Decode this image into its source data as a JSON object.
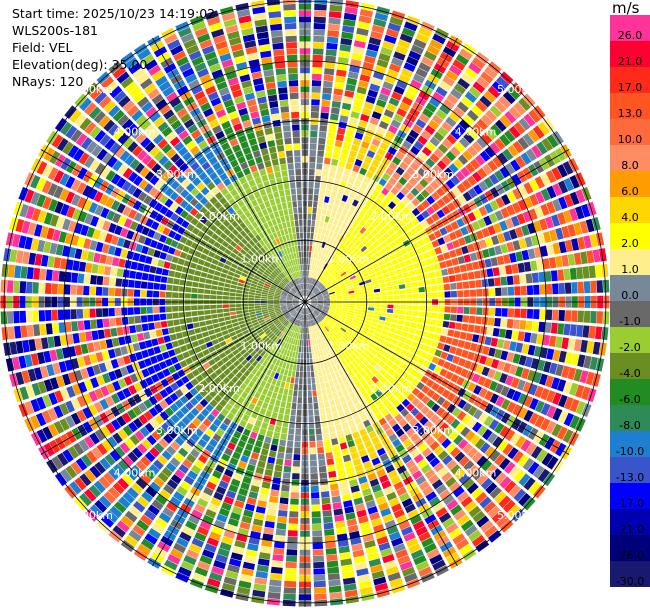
{
  "header": {
    "start_time": "Start time: 2025/10/23 14:19:02",
    "instrument": "WLS200s-181",
    "field": "Field: VEL",
    "elevation": "Elevation(deg): 35.00",
    "nrays": "NRays: 120"
  },
  "colorbar": {
    "unit": "m/s",
    "bins": [
      {
        "label": "26.0",
        "color": "#ff3399"
      },
      {
        "label": "21.0",
        "color": "#ff0033"
      },
      {
        "label": "17.0",
        "color": "#ff2a1a"
      },
      {
        "label": "13.0",
        "color": "#ff5522"
      },
      {
        "label": "10.0",
        "color": "#ff6a3c"
      },
      {
        "label": "8.0",
        "color": "#ff8c62"
      },
      {
        "label": "6.0",
        "color": "#ff9c00"
      },
      {
        "label": "4.0",
        "color": "#ffd700"
      },
      {
        "label": "2.0",
        "color": "#ffff00"
      },
      {
        "label": "1.0",
        "color": "#ffef8c"
      },
      {
        "label": "0.0",
        "color": "#778899"
      },
      {
        "label": "-1.0",
        "color": "#696969"
      },
      {
        "label": "-2.0",
        "color": "#9acd32"
      },
      {
        "label": "-4.0",
        "color": "#6b8e23"
      },
      {
        "label": "-6.0",
        "color": "#228b22"
      },
      {
        "label": "-8.0",
        "color": "#2e8b57"
      },
      {
        "label": "-10.0",
        "color": "#1e7fd0"
      },
      {
        "label": "-13.0",
        "color": "#3a54cc"
      },
      {
        "label": "-17.0",
        "color": "#0000ff"
      },
      {
        "label": "-21.0",
        "color": "#0000b0"
      },
      {
        "label": "-26.0",
        "color": "#00007a"
      },
      {
        "label": "-30.0",
        "color": "#191970"
      }
    ]
  },
  "chart_data": {
    "type": "heatmap",
    "projection": "polar",
    "field": "VEL",
    "units": "m/s",
    "nrays": 120,
    "range_max_km": 5,
    "range_ring_labels": [
      {
        "value_km": 1,
        "label": "1.00km"
      },
      {
        "value_km": 2,
        "label": "2.00km"
      },
      {
        "value_km": 3,
        "label": "3.00km"
      },
      {
        "value_km": 4,
        "label": "4.00km"
      },
      {
        "value_km": 5,
        "label": "5.00km"
      }
    ],
    "ring_label_azimuths_deg": [
      45,
      135,
      225,
      315
    ],
    "spoke_azimuths_deg": [
      0,
      30,
      60,
      90,
      120,
      150,
      180,
      210,
      240,
      270,
      300,
      330
    ],
    "pattern": "radial velocity PPI: positive (yellow/orange/red) toward east, negative (green/blue) toward west, noisy multicolored outer gates"
  }
}
